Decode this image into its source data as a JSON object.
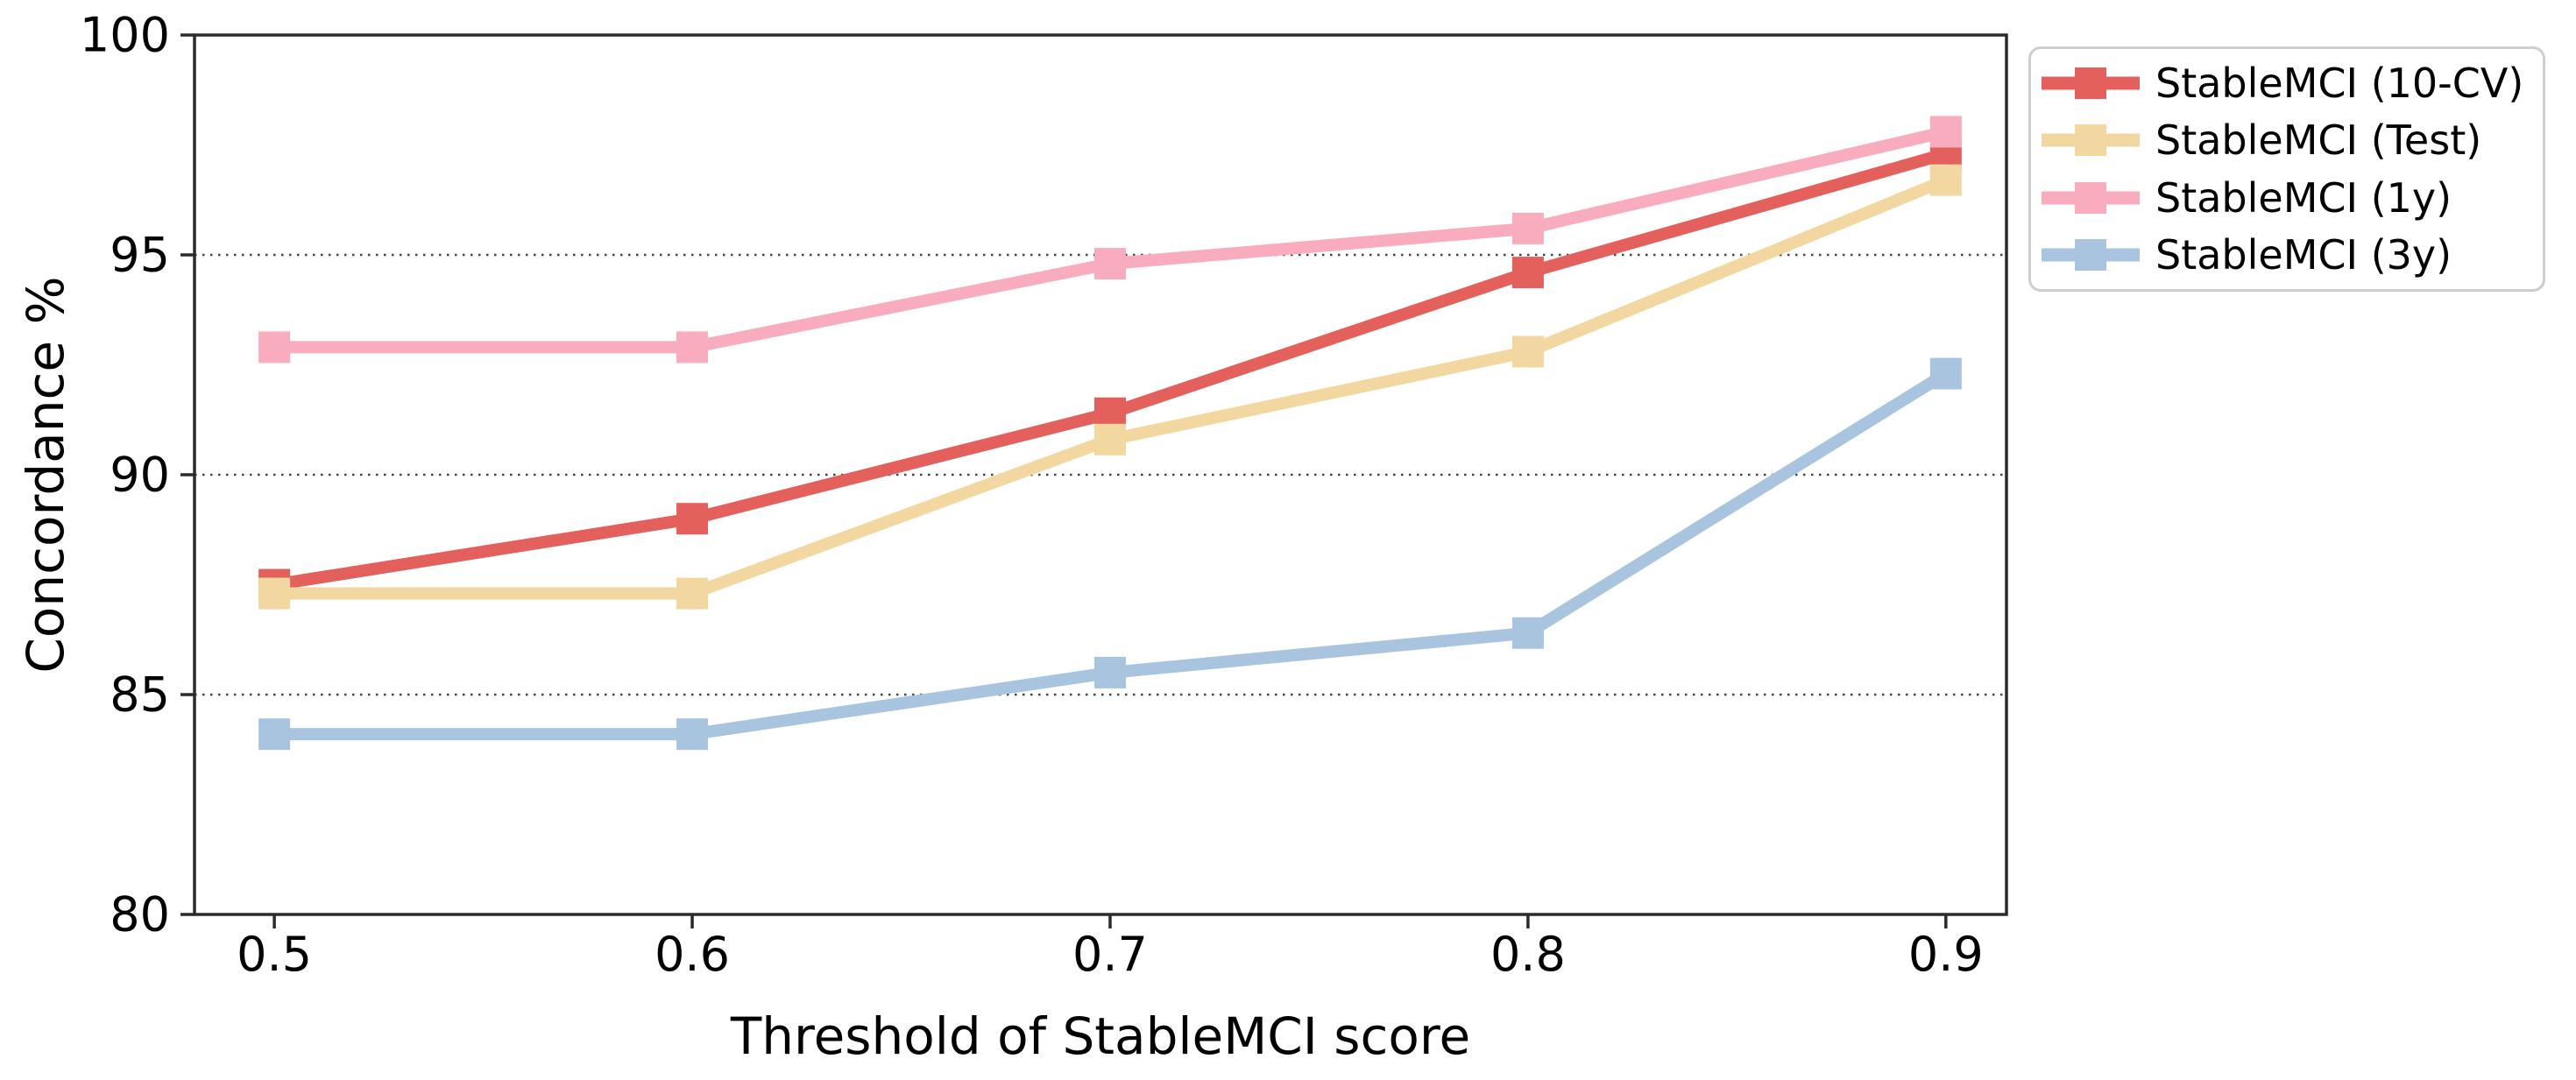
{
  "chart_data": {
    "type": "line",
    "title": "",
    "xlabel": "Threshold of StableMCI score",
    "ylabel": "Concordance %",
    "x": [
      0.5,
      0.6,
      0.7,
      0.8,
      0.9
    ],
    "xtick_labels": [
      "0.5",
      "0.6",
      "0.7",
      "0.8",
      "0.9"
    ],
    "ytick_values": [
      80,
      85,
      90,
      95,
      100
    ],
    "ytick_labels": [
      "80",
      "85",
      "90",
      "95",
      "100"
    ],
    "xlim": [
      0.4809,
      0.9145
    ],
    "ylim": [
      80,
      100
    ],
    "grid_y_values": [
      85,
      90,
      95
    ],
    "grid_style": "dotted",
    "legend_position": "outside-upper-right",
    "marker": "square",
    "series": [
      {
        "name": "StableMCI (10-CV)",
        "color": "#e4605c",
        "values": [
          87.5,
          89.0,
          91.4,
          94.6,
          97.3
        ]
      },
      {
        "name": "StableMCI (Test)",
        "color": "#f2d8a0",
        "values": [
          87.3,
          87.3,
          90.8,
          92.8,
          96.7
        ]
      },
      {
        "name": "StableMCI (1y)",
        "color": "#f8acbe",
        "values": [
          92.9,
          92.9,
          94.8,
          95.6,
          97.8
        ]
      },
      {
        "name": "StableMCI (3y)",
        "color": "#a9c4df",
        "values": [
          84.1,
          84.1,
          85.5,
          86.4,
          92.3
        ]
      }
    ],
    "colors": {
      "axis": "#2b2b2b",
      "grid": "#444444",
      "text": "#000000",
      "legend_border": "#cecece",
      "background": "#ffffff"
    }
  }
}
